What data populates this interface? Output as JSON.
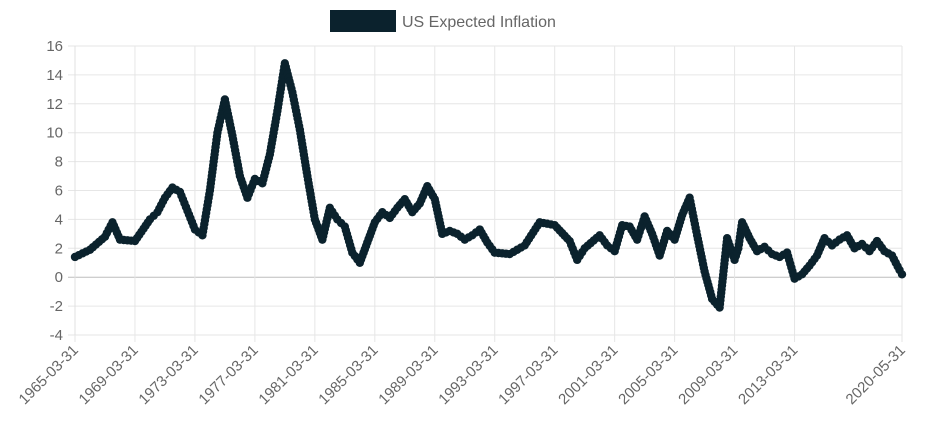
{
  "chart_data": {
    "type": "line",
    "legend_position": "top",
    "grid": true,
    "ylim": [
      -4,
      16
    ],
    "y_ticks": [
      "16",
      "14",
      "12",
      "10",
      "8",
      "6",
      "4",
      "2",
      "0",
      "-2",
      "-4"
    ],
    "x_ticks": [
      "1965-03-31",
      "1969-03-31",
      "1973-03-31",
      "1977-03-31",
      "1981-03-31",
      "1985-03-31",
      "1989-03-31",
      "1993-03-31",
      "1997-03-31",
      "2001-03-31",
      "2005-03-31",
      "2009-03-31",
      "2013-03-31",
      "2020-05-31"
    ],
    "series": [
      {
        "name": "US Expected Inflation",
        "color": "#0b222d",
        "x": [
          "1965-03-31",
          "1966-03-31",
          "1967-03-31",
          "1967-09-30",
          "1968-03-31",
          "1969-03-31",
          "1970-03-31",
          "1970-09-30",
          "1971-03-31",
          "1971-09-30",
          "1972-03-31",
          "1972-09-30",
          "1973-03-31",
          "1973-09-30",
          "1974-03-31",
          "1974-09-30",
          "1975-03-31",
          "1975-09-30",
          "1976-03-31",
          "1976-09-30",
          "1977-03-31",
          "1977-09-30",
          "1978-03-31",
          "1978-09-30",
          "1979-03-31",
          "1979-09-30",
          "1980-03-31",
          "1980-09-30",
          "1981-03-31",
          "1981-09-30",
          "1982-03-31",
          "1982-09-30",
          "1983-03-31",
          "1983-09-30",
          "1984-03-31",
          "1985-03-31",
          "1985-09-30",
          "1986-03-31",
          "1986-09-30",
          "1987-03-31",
          "1987-09-30",
          "1988-03-31",
          "1988-09-30",
          "1989-03-31",
          "1989-09-30",
          "1990-03-31",
          "1990-09-30",
          "1991-03-31",
          "1991-09-30",
          "1992-03-31",
          "1992-09-30",
          "1993-03-31",
          "1994-03-31",
          "1995-03-31",
          "1996-03-31",
          "1997-03-31",
          "1998-03-31",
          "1998-09-30",
          "1999-03-31",
          "2000-03-31",
          "2000-09-30",
          "2001-03-31",
          "2001-09-30",
          "2002-03-31",
          "2002-09-30",
          "2003-03-31",
          "2003-09-30",
          "2004-03-31",
          "2004-09-30",
          "2005-03-31",
          "2005-09-30",
          "2006-03-31",
          "2006-09-30",
          "2007-03-31",
          "2007-09-30",
          "2008-03-31",
          "2008-09-30",
          "2009-03-31",
          "2009-06-30",
          "2009-09-30",
          "2010-03-31",
          "2010-09-30",
          "2011-03-31",
          "2011-09-30",
          "2012-03-31",
          "2012-09-30",
          "2013-03-31",
          "2013-09-30",
          "2014-03-31",
          "2014-09-30",
          "2015-03-31",
          "2015-09-30",
          "2016-03-31",
          "2016-09-30",
          "2017-03-31",
          "2017-09-30",
          "2018-03-31",
          "2018-09-30",
          "2019-03-31",
          "2019-09-30",
          "2020-03-31",
          "2020-05-31"
        ],
        "values": [
          1.4,
          1.9,
          2.8,
          3.8,
          2.6,
          2.5,
          4.0,
          4.5,
          5.5,
          6.2,
          5.9,
          4.6,
          3.3,
          2.9,
          6.0,
          10.0,
          12.3,
          9.8,
          7.0,
          5.5,
          6.8,
          6.5,
          8.5,
          11.5,
          14.8,
          12.8,
          10.2,
          7.0,
          4.0,
          2.6,
          4.8,
          4.0,
          3.5,
          1.7,
          1.0,
          3.8,
          4.5,
          4.1,
          4.8,
          5.4,
          4.5,
          5.1,
          6.3,
          5.4,
          3.0,
          3.2,
          3.0,
          2.6,
          2.9,
          3.3,
          2.4,
          1.7,
          1.6,
          2.2,
          3.8,
          3.6,
          2.5,
          1.2,
          2.0,
          2.9,
          2.2,
          1.8,
          3.6,
          3.5,
          2.6,
          4.2,
          3.0,
          1.5,
          3.2,
          2.6,
          4.3,
          5.5,
          2.9,
          0.4,
          -1.5,
          -2.1,
          2.7,
          1.2,
          2.0,
          3.8,
          2.7,
          1.8,
          2.1,
          1.6,
          1.4,
          1.7,
          -0.1,
          0.2,
          0.8,
          1.5,
          2.7,
          2.2,
          2.6,
          2.9,
          2.0,
          2.3,
          1.8,
          2.5,
          1.8,
          1.5,
          0.5,
          0.2
        ]
      }
    ]
  }
}
